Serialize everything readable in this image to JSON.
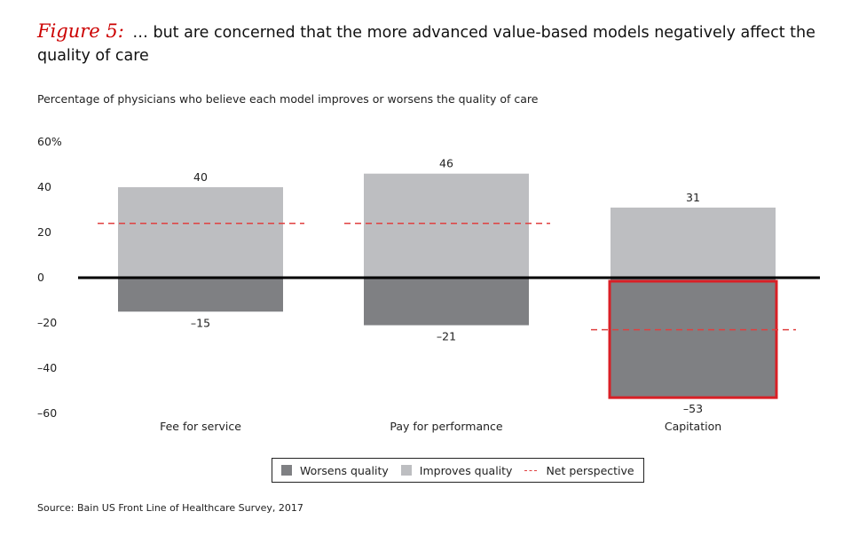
{
  "title": {
    "figure_label": "Figure 5:",
    "text": "… but are concerned that the more advanced value-based models negatively affect the quality of care"
  },
  "subtitle": "Percentage of physicians who believe each model improves or worsens the quality of care",
  "source": "Source: Bain US Front Line of Healthcare Survey, 2017",
  "colors": {
    "improves": "#bdbec1",
    "worsens": "#7f8083",
    "net": "#e04040",
    "highlight": "#d91f26",
    "axis": "#000000"
  },
  "chart_data": {
    "type": "bar",
    "categories": [
      "Fee for service",
      "Pay for performance",
      "Capitation"
    ],
    "series": [
      {
        "name": "Improves quality",
        "values": [
          40,
          46,
          31
        ],
        "labels": [
          "40",
          "46",
          "31"
        ]
      },
      {
        "name": "Worsens quality",
        "values": [
          -15,
          -21,
          -53
        ],
        "labels": [
          "–15",
          "–21",
          "–53"
        ]
      },
      {
        "name": "Net perspective",
        "values": [
          24,
          24,
          -23
        ]
      }
    ],
    "highlighted_category": "Capitation",
    "ylim": [
      -60,
      60
    ],
    "yticks": [
      {
        "value": 60,
        "label": "60%"
      },
      {
        "value": 40,
        "label": "40"
      },
      {
        "value": 20,
        "label": "20"
      },
      {
        "value": 0,
        "label": "0"
      },
      {
        "value": -20,
        "label": "–20"
      },
      {
        "value": -40,
        "label": "–40"
      },
      {
        "value": -60,
        "label": "–60"
      }
    ],
    "legend": [
      "Worsens quality",
      "Improves quality",
      "Net perspective"
    ]
  }
}
